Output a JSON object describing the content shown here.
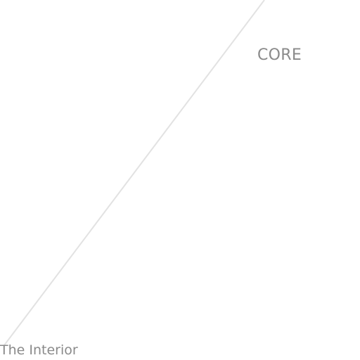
{
  "labels": {
    "core": "CORE",
    "interior": "The Interior"
  },
  "colors": {
    "background": "#ffffff",
    "line": "#e2e2e2",
    "text": "#8a8a8a"
  }
}
